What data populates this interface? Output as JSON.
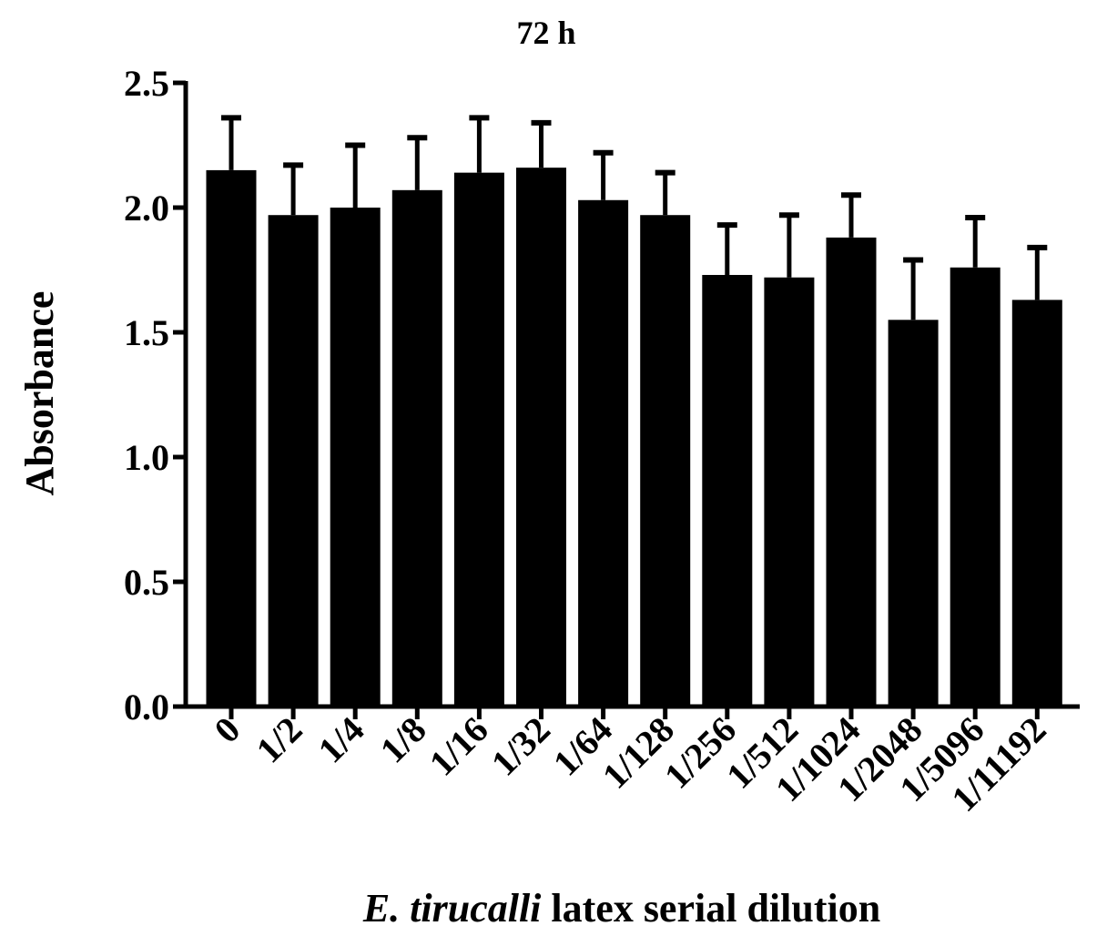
{
  "chart_data": {
    "type": "bar",
    "title": "72 h",
    "ylabel": "Absorbance",
    "xlabel_italic": "E. tirucalli",
    "xlabel_rest": " latex serial dilution",
    "categories": [
      "0",
      "1/2",
      "1/4",
      "1/8",
      "1/16",
      "1/32",
      "1/64",
      "1/128",
      "1/256",
      "1/512",
      "1/1024",
      "1/2048",
      "1/5096",
      "1/11192"
    ],
    "values": [
      2.15,
      1.97,
      2.0,
      2.07,
      2.14,
      2.16,
      2.03,
      1.97,
      1.73,
      1.72,
      1.88,
      1.55,
      1.76,
      1.63
    ],
    "errors": [
      0.21,
      0.2,
      0.25,
      0.21,
      0.22,
      0.18,
      0.19,
      0.17,
      0.2,
      0.25,
      0.17,
      0.24,
      0.2,
      0.21
    ],
    "ylim": [
      0,
      2.5
    ],
    "yticks": [
      "0.0",
      "0.5",
      "1.0",
      "1.5",
      "2.0",
      "2.5"
    ],
    "bar_color": "#000000",
    "grid": false,
    "legend": "none"
  }
}
